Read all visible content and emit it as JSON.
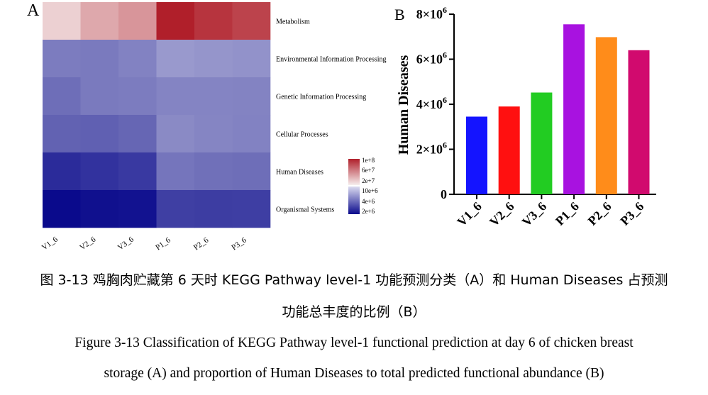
{
  "chart_data": [
    {
      "type": "heatmap",
      "panel_label": "A",
      "columns": [
        "V1_6",
        "V2_6",
        "V3_6",
        "P1_6",
        "P2_6",
        "P3_6"
      ],
      "rows": [
        "Metabolism",
        "Environmental Information Processing",
        "Genetic Information Processing",
        "Cellular Processes",
        "Human Diseases",
        "Organismal Systems"
      ],
      "values": [
        [
          80000000.0,
          88000000.0,
          92000000.0,
          122000000.0,
          116000000.0,
          112000000.0
        ],
        [
          14000000.0,
          13500000.0,
          15500000.0,
          22500000.0,
          21200000.0,
          20200000.0
        ],
        [
          11000000.0,
          13500000.0,
          14000000.0,
          16000000.0,
          16000000.0,
          15700000.0
        ],
        [
          9000000.0,
          8700000.0,
          9600000.0,
          17500000.0,
          16200000.0,
          15500000.0
        ],
        [
          3500000.0,
          4000000.0,
          4500000.0,
          12500000.0,
          11500000.0,
          11000000.0
        ],
        [
          2000000.0,
          2200000.0,
          2300000.0,
          5000000.0,
          4800000.0,
          4900000.0
        ]
      ],
      "legend": {
        "labels": [
          "1e+8",
          "6e+7",
          "2e+7",
          "10e+6",
          "4e+6",
          "2e+6"
        ],
        "colors": [
          "#b01f2a",
          "#d4868a",
          "#f6ecee",
          "#dcdcf0",
          "#5c5cab",
          "#0a0a8c"
        ]
      }
    },
    {
      "type": "bar",
      "panel_label": "B",
      "categories": [
        "V1_6",
        "V2_6",
        "V3_6",
        "P1_6",
        "P2_6",
        "P3_6"
      ],
      "values": [
        3450000,
        3900000,
        4520000,
        7550000,
        6980000,
        6400000
      ],
      "colors": [
        "#1414ff",
        "#ff1010",
        "#22cc22",
        "#a812e0",
        "#ff8c1a",
        "#d10a6e"
      ],
      "ylabel": "Human Diseases",
      "ylim": [
        0,
        8000000
      ],
      "yticks": [
        {
          "value": 0,
          "base": "0",
          "exp": ""
        },
        {
          "value": 2000000,
          "base": "2×10",
          "exp": "6"
        },
        {
          "value": 4000000,
          "base": "4×10",
          "exp": "6"
        },
        {
          "value": 6000000,
          "base": "6×10",
          "exp": "6"
        },
        {
          "value": 8000000,
          "base": "8×10",
          "exp": "6"
        }
      ]
    }
  ],
  "captions": {
    "cn_line1": "图 3-13  鸡胸肉贮藏第 6 天时 KEGG Pathway level-1 功能预测分类（A）和 Human Diseases 占预测",
    "cn_line2": "功能总丰度的比例（B）",
    "en_line1": "Figure 3-13 Classification of KEGG Pathway level-1 functional prediction at day 6 of chicken breast",
    "en_line2": "storage (A) and proportion of Human Diseases to total predicted functional abundance (B)"
  }
}
